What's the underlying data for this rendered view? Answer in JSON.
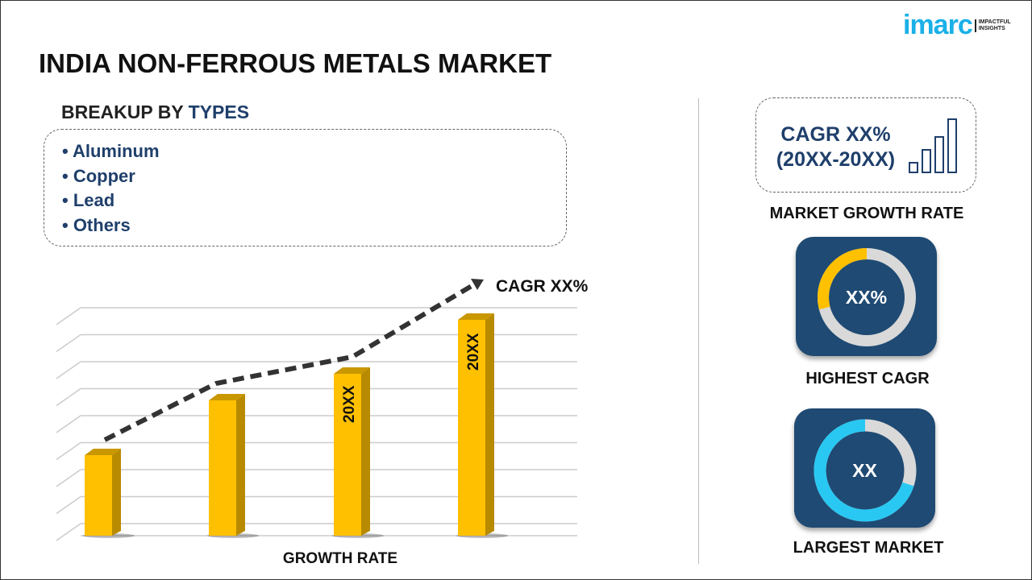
{
  "title": "INDIA NON-FERROUS METALS MARKET",
  "logo": {
    "word": "imarc",
    "tagline_1": "IMPACTFUL",
    "tagline_2": "INSIGHTS"
  },
  "breakup": {
    "label_prefix": "BREAKUP BY",
    "label_highlight": "TYPES",
    "items": [
      "• Aluminum",
      "• Copper",
      "• Lead",
      "• Others"
    ]
  },
  "chart": {
    "cagr_label": "CAGR XX%",
    "bar_labels": [
      "20XX",
      "20XX"
    ],
    "xlabel": "GROWTH RATE",
    "bar_color": "#ffc000",
    "line_color": "#333333"
  },
  "growth": {
    "cagr_line1": "CAGR XX%",
    "cagr_line2": "(20XX-20XX)",
    "label": "MARKET GROWTH RATE"
  },
  "highest": {
    "value": "XX%",
    "label": "HIGHEST CAGR",
    "fill_fraction": 0.29,
    "accent": "#ffc000"
  },
  "largest": {
    "value": "XX",
    "label": "LARGEST MARKET",
    "fill_fraction": 0.7,
    "accent": "#29c8f2"
  },
  "colors": {
    "navy": "#1f3f6b",
    "card": "#1f4a73"
  }
}
